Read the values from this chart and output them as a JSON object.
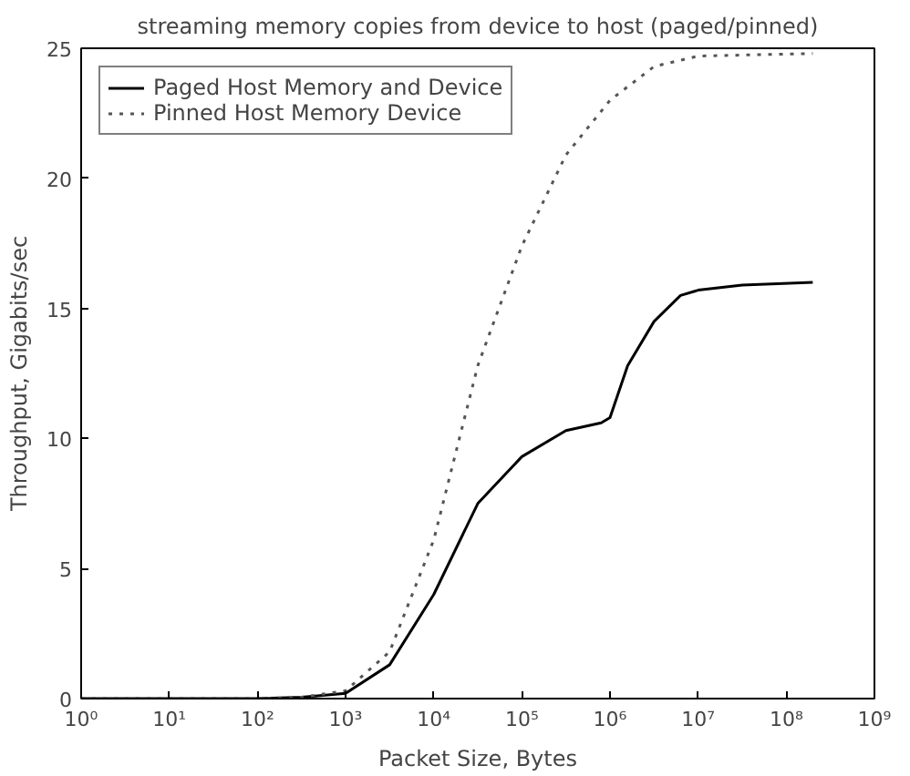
{
  "chart_data": {
    "type": "line",
    "title": "streaming memory copies from device to host (paged/pinned)",
    "xlabel": "Packet Size, Bytes",
    "ylabel": "Throughput, Gigabits/sec",
    "log": "x",
    "grid": false,
    "legend": "top left",
    "marker": "none",
    "xlim": [
      1,
      1000000000
    ],
    "ylim": [
      0,
      25
    ],
    "xticks": [
      {
        "value": 1,
        "label": "10⁰"
      },
      {
        "value": 10,
        "label": "10¹"
      },
      {
        "value": 100,
        "label": "10²"
      },
      {
        "value": 1000,
        "label": "10³"
      },
      {
        "value": 10000,
        "label": "10⁴"
      },
      {
        "value": 100000,
        "label": "10⁵"
      },
      {
        "value": 1000000,
        "label": "10⁶"
      },
      {
        "value": 10000000,
        "label": "10⁷"
      },
      {
        "value": 100000000,
        "label": "10⁸"
      },
      {
        "value": 1000000000,
        "label": "10⁹"
      }
    ],
    "yticks": [
      0,
      5,
      10,
      15,
      20,
      25
    ],
    "series": [
      {
        "name": "Paged Host Memory and Device",
        "color": "#000000",
        "line_style": "solid",
        "x": [
          1,
          10,
          100,
          316,
          1000,
          3162,
          10000,
          31623,
          100000,
          316228,
          794328,
          1000000,
          1584893,
          3162278,
          6309573,
          10000000,
          31622777,
          199526231
        ],
        "values": [
          0,
          0,
          0,
          0.05,
          0.2,
          1.3,
          4.0,
          7.5,
          9.3,
          10.3,
          10.6,
          10.8,
          12.8,
          14.5,
          15.5,
          15.7,
          15.9,
          16.0
        ]
      },
      {
        "name": "Pinned Host Memory Device",
        "color": "#555555",
        "line_style": "dotted",
        "x": [
          1,
          10,
          100,
          316,
          1000,
          3162,
          10000,
          31623,
          100000,
          316228,
          1000000,
          3162278,
          10000000,
          199526231
        ],
        "values": [
          0,
          0,
          0,
          0.05,
          0.3,
          1.8,
          6.1,
          12.8,
          17.4,
          20.9,
          23.0,
          24.3,
          24.7,
          24.8
        ]
      }
    ]
  }
}
